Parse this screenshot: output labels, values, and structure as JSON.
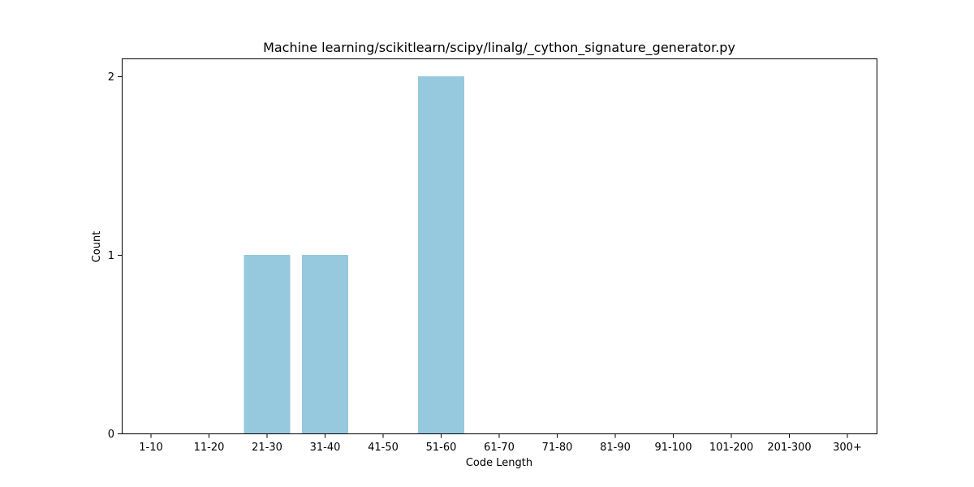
{
  "chart_data": {
    "type": "bar",
    "title": "Machine learning/scikitlearn/scipy/linalg/_cython_signature_generator.py",
    "xlabel": "Code Length",
    "ylabel": "Count",
    "categories": [
      "1-10",
      "11-20",
      "21-30",
      "31-40",
      "41-50",
      "51-60",
      "61-70",
      "71-80",
      "81-90",
      "91-100",
      "101-200",
      "201-300",
      "300+"
    ],
    "values": [
      0,
      0,
      1,
      1,
      0,
      2,
      0,
      0,
      0,
      0,
      0,
      0,
      0
    ],
    "ylim": [
      0,
      2.1
    ],
    "yticks": [
      0,
      1,
      2
    ],
    "grid": false,
    "bar_color": "#96c9de",
    "axis_color": "#000000"
  }
}
